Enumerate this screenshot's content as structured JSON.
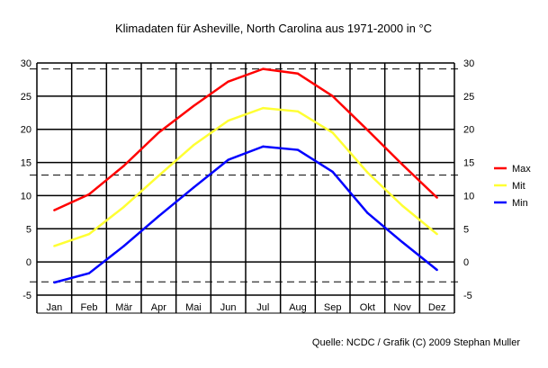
{
  "chart_data": {
    "type": "line",
    "title": "Klimadaten für Asheville, North Carolina aus 1971-2000 in °C",
    "source": "Quelle: NCDC / Grafik (C) 2009 Stephan Muller",
    "categories": [
      "Jan",
      "Feb",
      "Mär",
      "Apr",
      "Mai",
      "Jun",
      "Jul",
      "Aug",
      "Sep",
      "Okt",
      "Nov",
      "Dez"
    ],
    "ylim": [
      -5,
      30
    ],
    "yticks": [
      -5,
      0,
      5,
      10,
      15,
      20,
      25,
      30
    ],
    "grid": true,
    "reference_lines": [
      29.1,
      13.1,
      -3.0
    ],
    "legend_position": "right",
    "series": [
      {
        "name": "Max",
        "color": "#ff0000",
        "values": [
          7.8,
          10.2,
          14.5,
          19.5,
          23.5,
          27.2,
          29.1,
          28.4,
          25.0,
          19.9,
          14.7,
          9.7
        ]
      },
      {
        "name": "Mit",
        "color": "#ffff33",
        "values": [
          2.4,
          4.2,
          8.3,
          13.0,
          17.6,
          21.3,
          23.2,
          22.7,
          19.5,
          13.5,
          8.5,
          4.2
        ]
      },
      {
        "name": "Min",
        "color": "#0000ff",
        "values": [
          -3.1,
          -1.7,
          2.4,
          6.9,
          11.2,
          15.4,
          17.4,
          16.9,
          13.6,
          7.4,
          3.0,
          -1.2
        ]
      }
    ]
  }
}
